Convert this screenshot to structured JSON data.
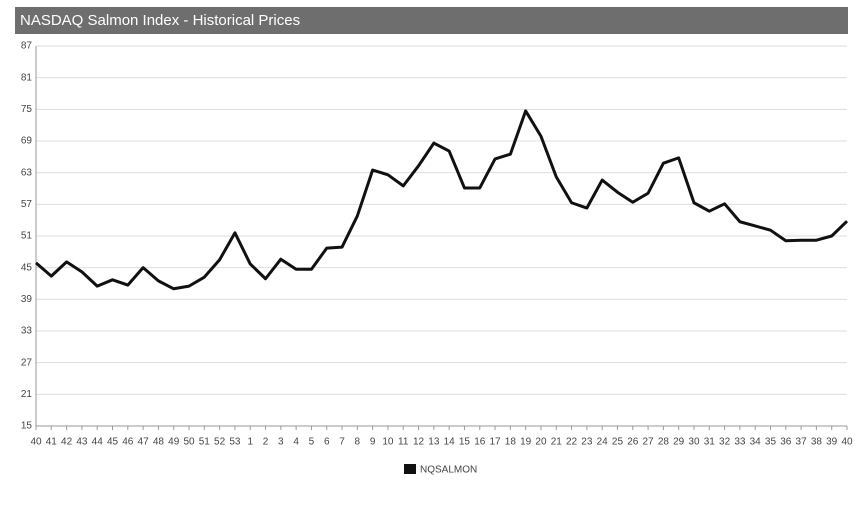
{
  "chart_data": {
    "type": "line",
    "title": "NASDAQ Salmon Index - Historical Prices",
    "categories": [
      "40",
      "41",
      "42",
      "43",
      "44",
      "45",
      "46",
      "47",
      "48",
      "49",
      "50",
      "51",
      "52",
      "53",
      "1",
      "2",
      "3",
      "4",
      "5",
      "6",
      "7",
      "8",
      "9",
      "10",
      "11",
      "12",
      "13",
      "14",
      "15",
      "16",
      "17",
      "18",
      "19",
      "20",
      "21",
      "22",
      "23",
      "24",
      "25",
      "26",
      "27",
      "28",
      "29",
      "30",
      "31",
      "32",
      "33",
      "34",
      "35",
      "36",
      "37",
      "38",
      "39",
      "40"
    ],
    "series": [
      {
        "name": "NQSALMON",
        "color": "#111111",
        "values": [
          45.9,
          43.4,
          46.1,
          44.2,
          41.5,
          42.7,
          41.7,
          45.0,
          42.5,
          41.0,
          41.5,
          43.2,
          46.5,
          51.6,
          45.7,
          42.9,
          46.6,
          44.7,
          44.7,
          48.7,
          48.9,
          54.8,
          63.5,
          62.6,
          60.5,
          64.3,
          68.6,
          67.1,
          60.1,
          60.1,
          65.6,
          66.5,
          74.7,
          69.9,
          62.2,
          57.3,
          56.3,
          61.6,
          59.3,
          57.4,
          59.1,
          64.8,
          65.8,
          57.3,
          55.7,
          57.1,
          53.7,
          52.9,
          52.1,
          50.1,
          50.2,
          50.2,
          51.0,
          53.8
        ]
      }
    ],
    "ylim": [
      15,
      87
    ],
    "yticks": [
      15,
      21,
      27,
      33,
      39,
      45,
      51,
      57,
      63,
      69,
      75,
      81,
      87
    ],
    "grid": true,
    "legend": "bottom"
  }
}
